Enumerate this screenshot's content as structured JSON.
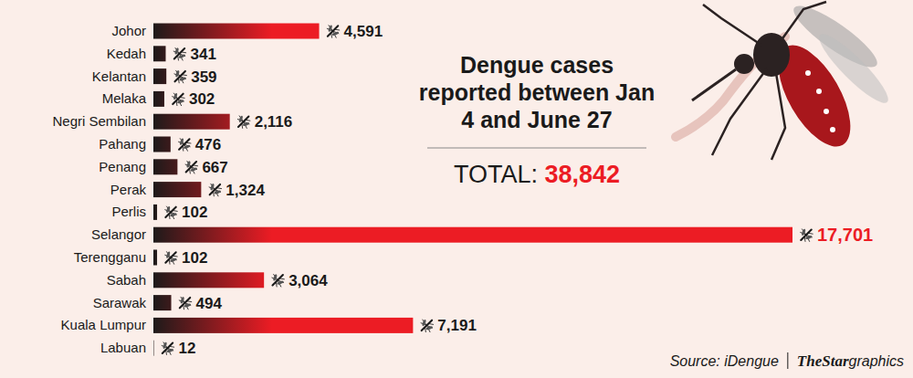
{
  "chart_data": {
    "type": "bar",
    "orientation": "horizontal",
    "title": "Dengue cases reported between Jan 4 and June 27",
    "total": {
      "label": "TOTAL:",
      "value": "38,842"
    },
    "source": "Source: iDengue",
    "credit": {
      "logo": "TheStar",
      "text": "graphics"
    },
    "categories": [
      "Johor",
      "Kedah",
      "Kelantan",
      "Melaka",
      "Negri Sembilan",
      "Pahang",
      "Penang",
      "Perak",
      "Perlis",
      "Selangor",
      "Terengganu",
      "Sabah",
      "Sarawak",
      "Kuala Lumpur",
      "Labuan"
    ],
    "values": [
      4591,
      341,
      359,
      302,
      2116,
      476,
      667,
      1324,
      102,
      17701,
      102,
      3064,
      494,
      7191,
      12
    ],
    "value_labels": [
      "4,591",
      "341",
      "359",
      "302",
      "2,116",
      "476",
      "667",
      "1,324",
      "102",
      "17,701",
      "102",
      "3,064",
      "494",
      "7,191",
      "12"
    ],
    "color": "#ec1c24",
    "xlim": [
      0,
      17701
    ],
    "data_labels": true,
    "tick_labels": false,
    "grid": false
  }
}
